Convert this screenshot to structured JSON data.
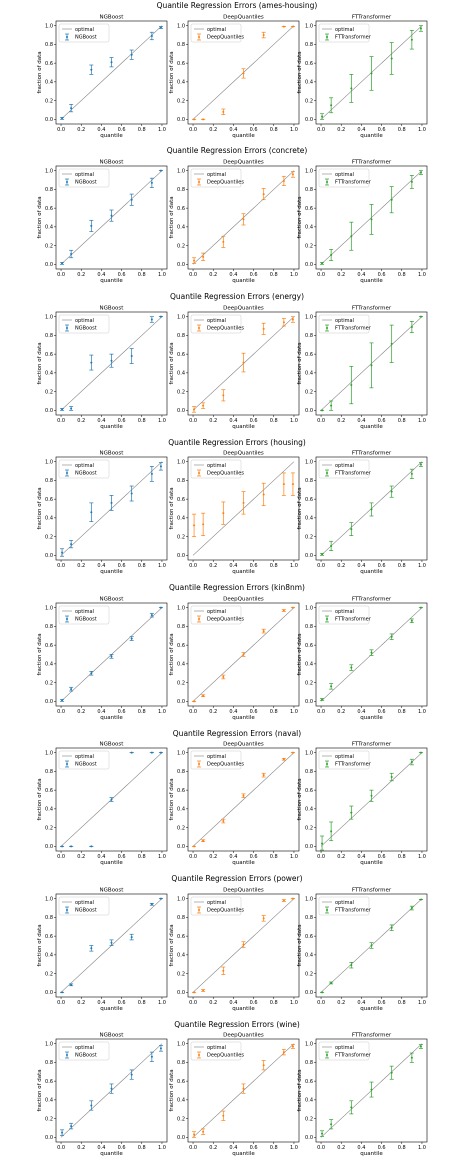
{
  "chart_data": {
    "type": "scatter",
    "panel_titles": [
      "NGBoost",
      "DeepQuantiles",
      "FTTransformer"
    ],
    "xlabel": "quantile",
    "ylabel": "fraction of data",
    "xlim": [
      0,
      1
    ],
    "ylim": [
      0,
      1
    ],
    "ticks": [
      "0.0",
      "0.2",
      "0.4",
      "0.6",
      "0.8",
      "1.0"
    ],
    "legend_optimal": "optimal",
    "colors": {
      "NGBoost": "#1f77b4",
      "DeepQuantiles": "#ff7f0e",
      "FTTransformer": "#2ca02c",
      "optimal": "#808080"
    },
    "x": [
      0.01,
      0.1,
      0.3,
      0.5,
      0.7,
      0.9,
      0.99
    ],
    "datasets": [
      {
        "title": "Quantile Regression Errors (ames-housing)",
        "models": [
          {
            "name": "NGBoost",
            "y": [
              0.01,
              0.12,
              0.53,
              0.61,
              0.69,
              0.89,
              0.98
            ],
            "err": [
              0.01,
              0.04,
              0.05,
              0.05,
              0.05,
              0.04,
              0.01
            ]
          },
          {
            "name": "DeepQuantiles",
            "y": [
              0.0,
              0.0,
              0.08,
              0.49,
              0.9,
              0.99,
              0.99
            ],
            "err": [
              0.0,
              0.0,
              0.03,
              0.05,
              0.03,
              0.0,
              0.0
            ]
          },
          {
            "name": "FTTransformer",
            "y": [
              0.03,
              0.15,
              0.33,
              0.49,
              0.65,
              0.85,
              0.97
            ],
            "err": [
              0.03,
              0.08,
              0.15,
              0.18,
              0.17,
              0.1,
              0.03
            ]
          }
        ]
      },
      {
        "title": "Quantile Regression Errors (concrete)",
        "models": [
          {
            "name": "NGBoost",
            "y": [
              0.01,
              0.11,
              0.41,
              0.52,
              0.69,
              0.87,
              1.0
            ],
            "err": [
              0.01,
              0.04,
              0.06,
              0.06,
              0.06,
              0.05,
              0.0
            ]
          },
          {
            "name": "DeepQuantiles",
            "y": [
              0.04,
              0.08,
              0.24,
              0.48,
              0.75,
              0.89,
              0.96
            ],
            "err": [
              0.03,
              0.04,
              0.06,
              0.06,
              0.06,
              0.05,
              0.03
            ]
          },
          {
            "name": "FTTransformer",
            "y": [
              0.01,
              0.1,
              0.3,
              0.48,
              0.69,
              0.88,
              0.98
            ],
            "err": [
              0.01,
              0.06,
              0.15,
              0.16,
              0.14,
              0.07,
              0.02
            ]
          }
        ]
      },
      {
        "title": "Quantile Regression Errors (energy)",
        "models": [
          {
            "name": "NGBoost",
            "y": [
              0.01,
              0.02,
              0.51,
              0.53,
              0.58,
              0.97,
              1.0
            ],
            "err": [
              0.01,
              0.02,
              0.08,
              0.07,
              0.08,
              0.03,
              0.0
            ]
          },
          {
            "name": "DeepQuantiles",
            "y": [
              0.01,
              0.05,
              0.16,
              0.51,
              0.87,
              0.94,
              0.97
            ],
            "err": [
              0.03,
              0.03,
              0.06,
              0.1,
              0.06,
              0.04,
              0.03
            ]
          },
          {
            "name": "FTTransformer",
            "y": [
              0.0,
              0.05,
              0.27,
              0.48,
              0.71,
              0.89,
              1.0
            ],
            "err": [
              0.0,
              0.05,
              0.2,
              0.24,
              0.2,
              0.06,
              0.0
            ]
          }
        ]
      },
      {
        "title": "Quantile Regression Errors (housing)",
        "models": [
          {
            "name": "NGBoost",
            "y": [
              0.03,
              0.12,
              0.46,
              0.56,
              0.66,
              0.87,
              0.95
            ],
            "err": [
              0.04,
              0.04,
              0.1,
              0.08,
              0.08,
              0.08,
              0.04
            ]
          },
          {
            "name": "DeepQuantiles",
            "y": [
              0.32,
              0.33,
              0.45,
              0.56,
              0.65,
              0.76,
              0.76
            ],
            "err": [
              0.12,
              0.12,
              0.12,
              0.12,
              0.12,
              0.12,
              0.12
            ]
          },
          {
            "name": "FTTransformer",
            "y": [
              0.01,
              0.1,
              0.28,
              0.49,
              0.68,
              0.87,
              0.97
            ],
            "err": [
              0.01,
              0.05,
              0.07,
              0.07,
              0.06,
              0.05,
              0.02
            ]
          }
        ]
      },
      {
        "title": "Quantile Regression Errors (kin8nm)",
        "models": [
          {
            "name": "NGBoost",
            "y": [
              0.01,
              0.13,
              0.3,
              0.48,
              0.67,
              0.92,
              1.0
            ],
            "err": [
              0.01,
              0.02,
              0.02,
              0.02,
              0.02,
              0.02,
              0.0
            ]
          },
          {
            "name": "DeepQuantiles",
            "y": [
              0.0,
              0.06,
              0.26,
              0.5,
              0.75,
              0.97,
              1.0
            ],
            "err": [
              0.0,
              0.01,
              0.02,
              0.02,
              0.02,
              0.01,
              0.0
            ]
          },
          {
            "name": "FTTransformer",
            "y": [
              0.02,
              0.16,
              0.36,
              0.52,
              0.69,
              0.86,
              1.0
            ],
            "err": [
              0.01,
              0.03,
              0.03,
              0.03,
              0.03,
              0.02,
              0.0
            ]
          }
        ]
      },
      {
        "title": "Quantile Regression Errors (naval)",
        "models": [
          {
            "name": "NGBoost",
            "y": [
              0.0,
              0.0,
              0.0,
              0.5,
              1.0,
              1.0,
              1.0
            ],
            "err": [
              0.0,
              0.0,
              0.0,
              0.02,
              0.0,
              0.0,
              0.0
            ]
          },
          {
            "name": "DeepQuantiles",
            "y": [
              0.0,
              0.06,
              0.27,
              0.54,
              0.76,
              0.93,
              1.0
            ],
            "err": [
              0.0,
              0.01,
              0.02,
              0.02,
              0.02,
              0.01,
              0.0
            ]
          },
          {
            "name": "FTTransformer",
            "y": [
              0.03,
              0.16,
              0.36,
              0.54,
              0.74,
              0.9,
              1.0
            ],
            "err": [
              0.08,
              0.1,
              0.07,
              0.06,
              0.04,
              0.03,
              0.0
            ]
          }
        ]
      },
      {
        "title": "Quantile Regression Errors (power)",
        "models": [
          {
            "name": "NGBoost",
            "y": [
              0.0,
              0.08,
              0.47,
              0.53,
              0.59,
              0.94,
              1.0
            ],
            "err": [
              0.0,
              0.01,
              0.03,
              0.03,
              0.03,
              0.01,
              0.0
            ]
          },
          {
            "name": "DeepQuantiles",
            "y": [
              0.0,
              0.02,
              0.23,
              0.51,
              0.79,
              0.98,
              1.0
            ],
            "err": [
              0.0,
              0.01,
              0.04,
              0.03,
              0.03,
              0.01,
              0.0
            ]
          },
          {
            "name": "FTTransformer",
            "y": [
              0.0,
              0.1,
              0.29,
              0.5,
              0.69,
              0.9,
              0.99
            ],
            "err": [
              0.0,
              0.01,
              0.03,
              0.03,
              0.03,
              0.02,
              0.0
            ]
          }
        ]
      },
      {
        "title": "Quantile Regression Errors (wine)",
        "models": [
          {
            "name": "NGBoost",
            "y": [
              0.05,
              0.12,
              0.34,
              0.52,
              0.67,
              0.86,
              0.95
            ],
            "err": [
              0.03,
              0.03,
              0.05,
              0.05,
              0.05,
              0.05,
              0.03
            ]
          },
          {
            "name": "DeepQuantiles",
            "y": [
              0.03,
              0.06,
              0.23,
              0.52,
              0.77,
              0.91,
              0.97
            ],
            "err": [
              0.03,
              0.03,
              0.05,
              0.05,
              0.05,
              0.03,
              0.02
            ]
          },
          {
            "name": "FTTransformer",
            "y": [
              0.04,
              0.14,
              0.32,
              0.51,
              0.69,
              0.85,
              0.97
            ],
            "err": [
              0.03,
              0.05,
              0.07,
              0.08,
              0.07,
              0.05,
              0.02
            ]
          }
        ]
      }
    ]
  }
}
